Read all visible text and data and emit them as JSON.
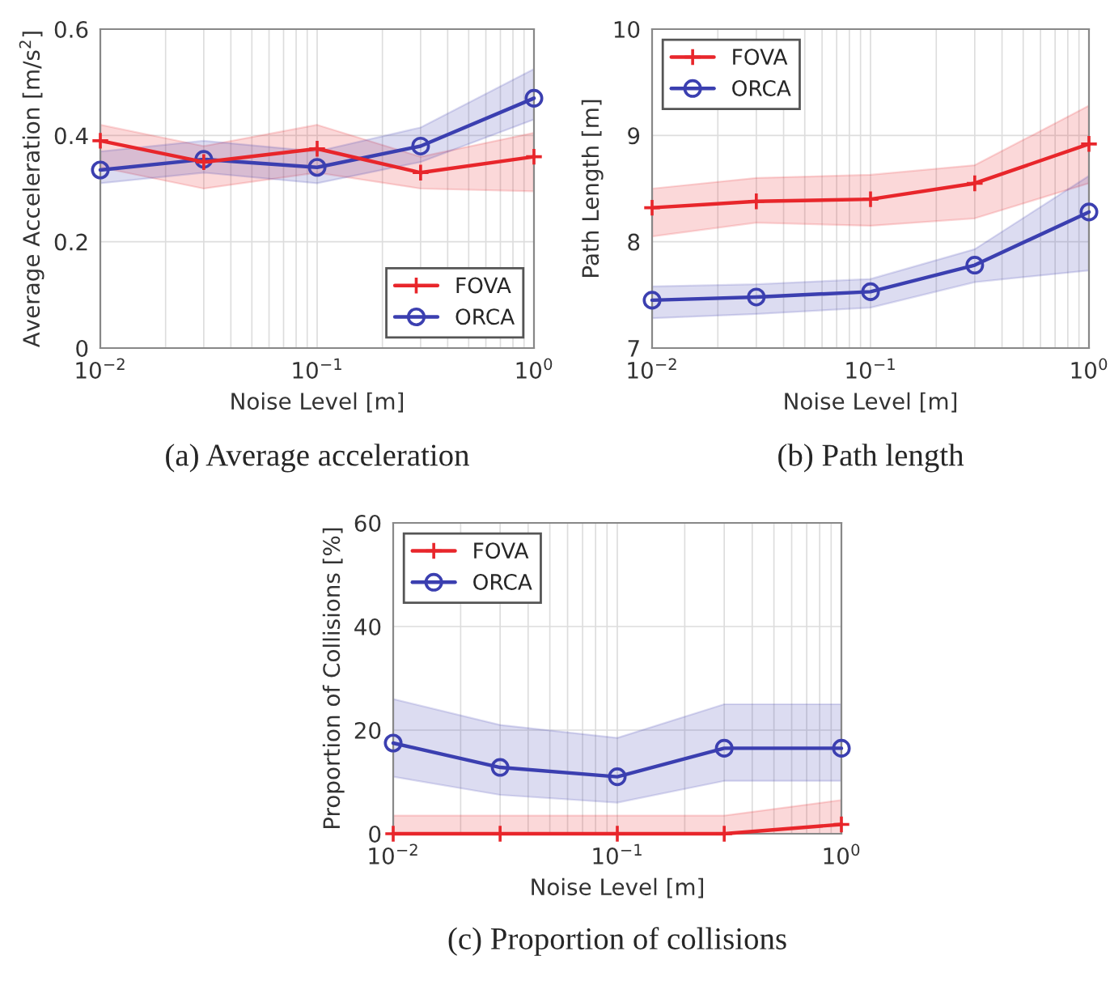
{
  "chart_data": [
    {
      "type": "line",
      "title": "(a) Average acceleration",
      "xlabel": "Noise Level [m]",
      "ylabel": "Average Acceleration [m/s$^{2}$]",
      "log": "x",
      "grid": true,
      "legend": "bottom right",
      "xlim": [
        0.01,
        1
      ],
      "xticks": [
        {
          "value": 0.01,
          "label": "10$^{−2}$"
        },
        {
          "value": 0.1,
          "label": "10$^{−1}$"
        },
        {
          "value": 1,
          "label": "10$^{0}$"
        }
      ],
      "ylim": [
        0,
        0.6
      ],
      "yticks": [
        0,
        0.2,
        0.4,
        0.6
      ],
      "x": [
        0.01,
        0.03,
        0.1,
        0.3,
        1
      ],
      "series": [
        {
          "name": "FOVA",
          "color": "#e8262b",
          "marker": "cross",
          "values": [
            0.39,
            0.35,
            0.375,
            0.33,
            0.36
          ],
          "lower": [
            0.34,
            0.3,
            0.33,
            0.3,
            0.295
          ],
          "upper": [
            0.42,
            0.38,
            0.42,
            0.36,
            0.405
          ]
        },
        {
          "name": "ORCA",
          "color": "#3b3fb0",
          "marker": "circle",
          "values": [
            0.335,
            0.355,
            0.34,
            0.38,
            0.47
          ],
          "lower": [
            0.31,
            0.33,
            0.31,
            0.35,
            0.43
          ],
          "upper": [
            0.37,
            0.39,
            0.37,
            0.415,
            0.525
          ]
        }
      ]
    },
    {
      "type": "line",
      "title": "(b) Path length",
      "xlabel": "Noise Level [m]",
      "ylabel": "Path Length [m]",
      "log": "x",
      "grid": true,
      "legend": "top left",
      "xlim": [
        0.01,
        1
      ],
      "xticks": [
        {
          "value": 0.01,
          "label": "10$^{−2}$"
        },
        {
          "value": 0.1,
          "label": "10$^{−1}$"
        },
        {
          "value": 1,
          "label": "10$^{0}$"
        }
      ],
      "ylim": [
        7,
        10
      ],
      "yticks": [
        7,
        8,
        9,
        10
      ],
      "x": [
        0.01,
        0.03,
        0.1,
        0.3,
        1
      ],
      "series": [
        {
          "name": "FOVA",
          "color": "#e8262b",
          "marker": "cross",
          "values": [
            8.32,
            8.38,
            8.4,
            8.55,
            8.92
          ],
          "lower": [
            8.05,
            8.18,
            8.15,
            8.22,
            8.55
          ],
          "upper": [
            8.5,
            8.6,
            8.63,
            8.72,
            9.28
          ]
        },
        {
          "name": "ORCA",
          "color": "#3b3fb0",
          "marker": "circle",
          "values": [
            7.45,
            7.48,
            7.53,
            7.78,
            8.28
          ],
          "lower": [
            7.28,
            7.32,
            7.38,
            7.62,
            7.73
          ],
          "upper": [
            7.58,
            7.6,
            7.65,
            7.93,
            8.62
          ]
        }
      ]
    },
    {
      "type": "line",
      "title": "(c) Proportion of collisions",
      "xlabel": "Noise Level [m]",
      "ylabel": "Proportion of Collisions [%]",
      "log": "x",
      "grid": true,
      "legend": "top left",
      "xlim": [
        0.01,
        1
      ],
      "xticks": [
        {
          "value": 0.01,
          "label": "10$^{−2}$"
        },
        {
          "value": 0.1,
          "label": "10$^{−1}$"
        },
        {
          "value": 1,
          "label": "10$^{0}$"
        }
      ],
      "ylim": [
        0,
        60
      ],
      "yticks": [
        0,
        20,
        40,
        60
      ],
      "x": [
        0.01,
        0.03,
        0.1,
        0.3,
        1
      ],
      "series": [
        {
          "name": "FOVA",
          "color": "#e8262b",
          "marker": "cross",
          "values": [
            0,
            0,
            0,
            0,
            1.8
          ],
          "lower": [
            0,
            0,
            0,
            0,
            0
          ],
          "upper": [
            3.5,
            3.5,
            3.5,
            3.5,
            6.5
          ]
        },
        {
          "name": "ORCA",
          "color": "#3b3fb0",
          "marker": "circle",
          "values": [
            17.5,
            12.8,
            11,
            16.5,
            16.5
          ],
          "lower": [
            11,
            7.5,
            6,
            10.2,
            10.2
          ],
          "upper": [
            26,
            21,
            18.5,
            25,
            25
          ]
        }
      ]
    }
  ]
}
